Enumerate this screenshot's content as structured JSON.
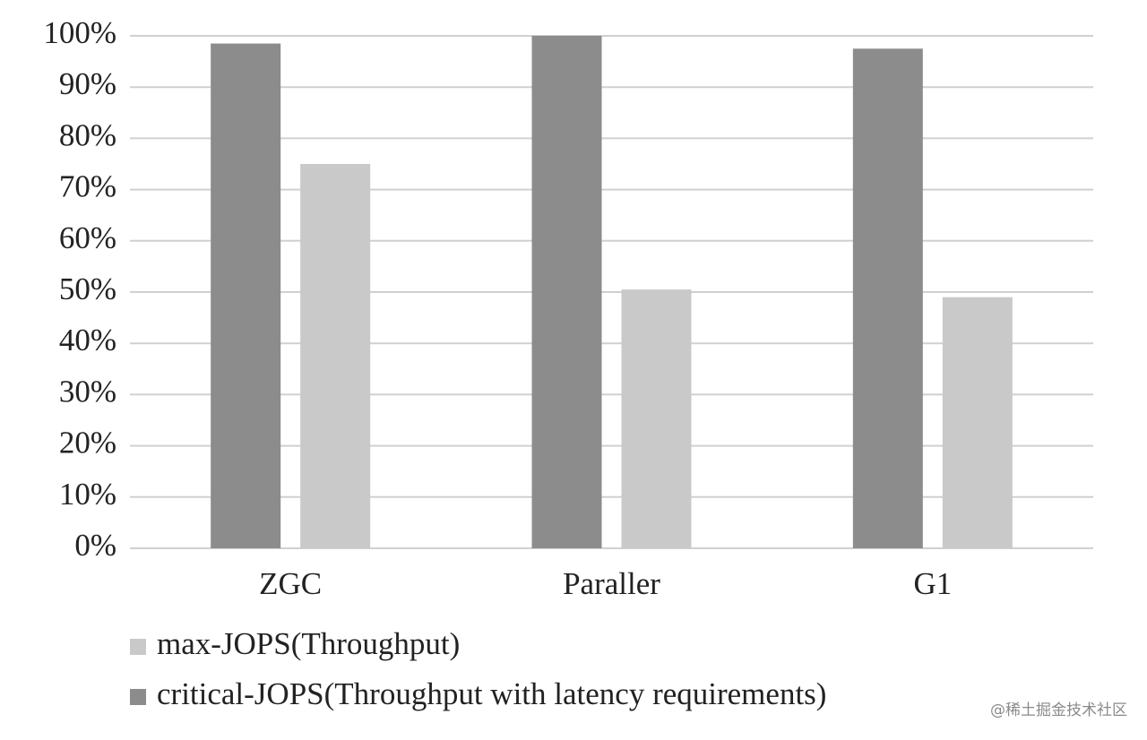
{
  "chart_data": {
    "type": "bar",
    "categories": [
      "ZGC",
      "Paraller",
      "G1"
    ],
    "series": [
      {
        "name": "max-JOPS(Throughput)",
        "color": "#c9c9c9",
        "values": [
          75,
          50.5,
          49
        ]
      },
      {
        "name": "critical-JOPS(Throughput with latency requirements)",
        "color": "#8c8c8c",
        "values": [
          98.5,
          100,
          97.5
        ]
      }
    ],
    "ylim": [
      0,
      100
    ],
    "yticks": [
      {
        "value": 0,
        "label": "0%"
      },
      {
        "value": 10,
        "label": "10%"
      },
      {
        "value": 20,
        "label": "20%"
      },
      {
        "value": 30,
        "label": "30%"
      },
      {
        "value": 40,
        "label": "40%"
      },
      {
        "value": 50,
        "label": "50%"
      },
      {
        "value": 60,
        "label": "60%"
      },
      {
        "value": 70,
        "label": "70%"
      },
      {
        "value": 80,
        "label": "80%"
      },
      {
        "value": 90,
        "label": "90%"
      },
      {
        "value": 100,
        "label": "100%"
      }
    ],
    "grid": true,
    "legend": "bottom",
    "watermark": "@稀土掘金技术社区"
  }
}
